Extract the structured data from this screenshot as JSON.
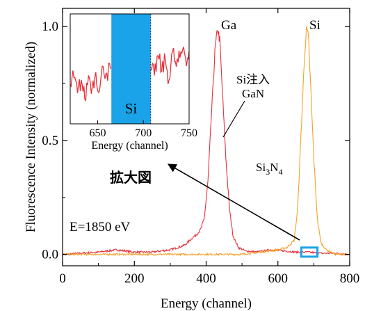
{
  "chart_data": {
    "main": {
      "type": "line",
      "xlabel": "Energy (channel)",
      "ylabel": "Fluorescence Intensity (normalized)",
      "xlim": [
        0,
        800
      ],
      "ylim": [
        -0.05,
        1.08
      ],
      "xticks": [
        {
          "value": 0,
          "label": "0"
        },
        {
          "value": 200,
          "label": "200"
        },
        {
          "value": 400,
          "label": "400"
        },
        {
          "value": 600,
          "label": "600"
        },
        {
          "value": 800,
          "label": "800"
        }
      ],
      "yticks": [
        {
          "value": 0.0,
          "label": "0.0"
        },
        {
          "value": 0.5,
          "label": "0.5"
        },
        {
          "value": 1.0,
          "label": "1.0"
        }
      ],
      "series": [
        {
          "name": "Si注入 GaN",
          "color": "#e8303a",
          "x": [
            0,
            50,
            100,
            150,
            200,
            250,
            300,
            340,
            360,
            375,
            385,
            395,
            405,
            415,
            425,
            432,
            438,
            445,
            455,
            465,
            475,
            490,
            510,
            540,
            580,
            620,
            650,
            680,
            720,
            760,
            800
          ],
          "y": [
            0.0,
            0.005,
            0.01,
            0.02,
            0.01,
            0.01,
            0.02,
            0.04,
            0.07,
            0.09,
            0.11,
            0.16,
            0.32,
            0.62,
            0.9,
            0.99,
            0.94,
            0.72,
            0.42,
            0.2,
            0.08,
            0.03,
            0.015,
            0.01,
            0.02,
            0.015,
            0.01,
            0.01,
            0.005,
            0.005,
            0.0
          ]
        },
        {
          "name": "Si3N4",
          "color": "#f5a02a",
          "x": [
            0,
            100,
            200,
            300,
            400,
            500,
            550,
            575,
            600,
            625,
            645,
            655,
            665,
            675,
            680,
            685,
            690,
            700,
            710,
            720,
            735,
            760,
            800
          ],
          "y": [
            0.0,
            0.0,
            0.0,
            0.0,
            0.0,
            0.0,
            0.01,
            0.015,
            0.02,
            0.03,
            0.06,
            0.2,
            0.55,
            0.9,
            0.99,
            0.95,
            0.78,
            0.42,
            0.15,
            0.05,
            0.02,
            0.0,
            0.0
          ]
        }
      ],
      "annotations": {
        "ga_label": "Ga",
        "si_label": "Si",
        "si_implant_line1": "Si注入",
        "si_implant_line2": "GaN",
        "si3n4_base": "Si",
        "si3n4_sub1": "3",
        "si3n4_mid": "N",
        "si3n4_sub2": "4",
        "magnified_label": "拡大図",
        "energy_note": "E=1850 eV"
      },
      "zoom_region": {
        "xlim": [
          665,
          710
        ],
        "ylim": [
          -0.01,
          0.03
        ],
        "color": "#1aa3e8"
      }
    },
    "inset": {
      "type": "line",
      "xlabel": "Energy (channel)",
      "xlim": [
        620,
        750
      ],
      "xticks": [
        {
          "value": 650,
          "label": "650"
        },
        {
          "value": 700,
          "label": "700"
        },
        {
          "value": 750,
          "label": "750"
        }
      ],
      "ylim": [
        0,
        1
      ],
      "highlight": {
        "xlim": [
          665,
          708
        ],
        "label": "Si",
        "color": "#1aa3e8"
      },
      "series": [
        {
          "color": "#e8303a",
          "x": [
            620,
            624,
            628,
            632,
            636,
            640,
            644,
            648,
            652,
            656,
            660,
            664,
            708,
            712,
            716,
            720,
            724,
            728,
            732,
            736,
            740,
            744,
            748,
            750
          ],
          "y": [
            0.36,
            0.42,
            0.28,
            0.4,
            0.22,
            0.44,
            0.33,
            0.47,
            0.3,
            0.52,
            0.46,
            0.5,
            0.5,
            0.44,
            0.62,
            0.48,
            0.58,
            0.4,
            0.66,
            0.52,
            0.6,
            0.7,
            0.58,
            0.66
          ]
        }
      ]
    }
  }
}
